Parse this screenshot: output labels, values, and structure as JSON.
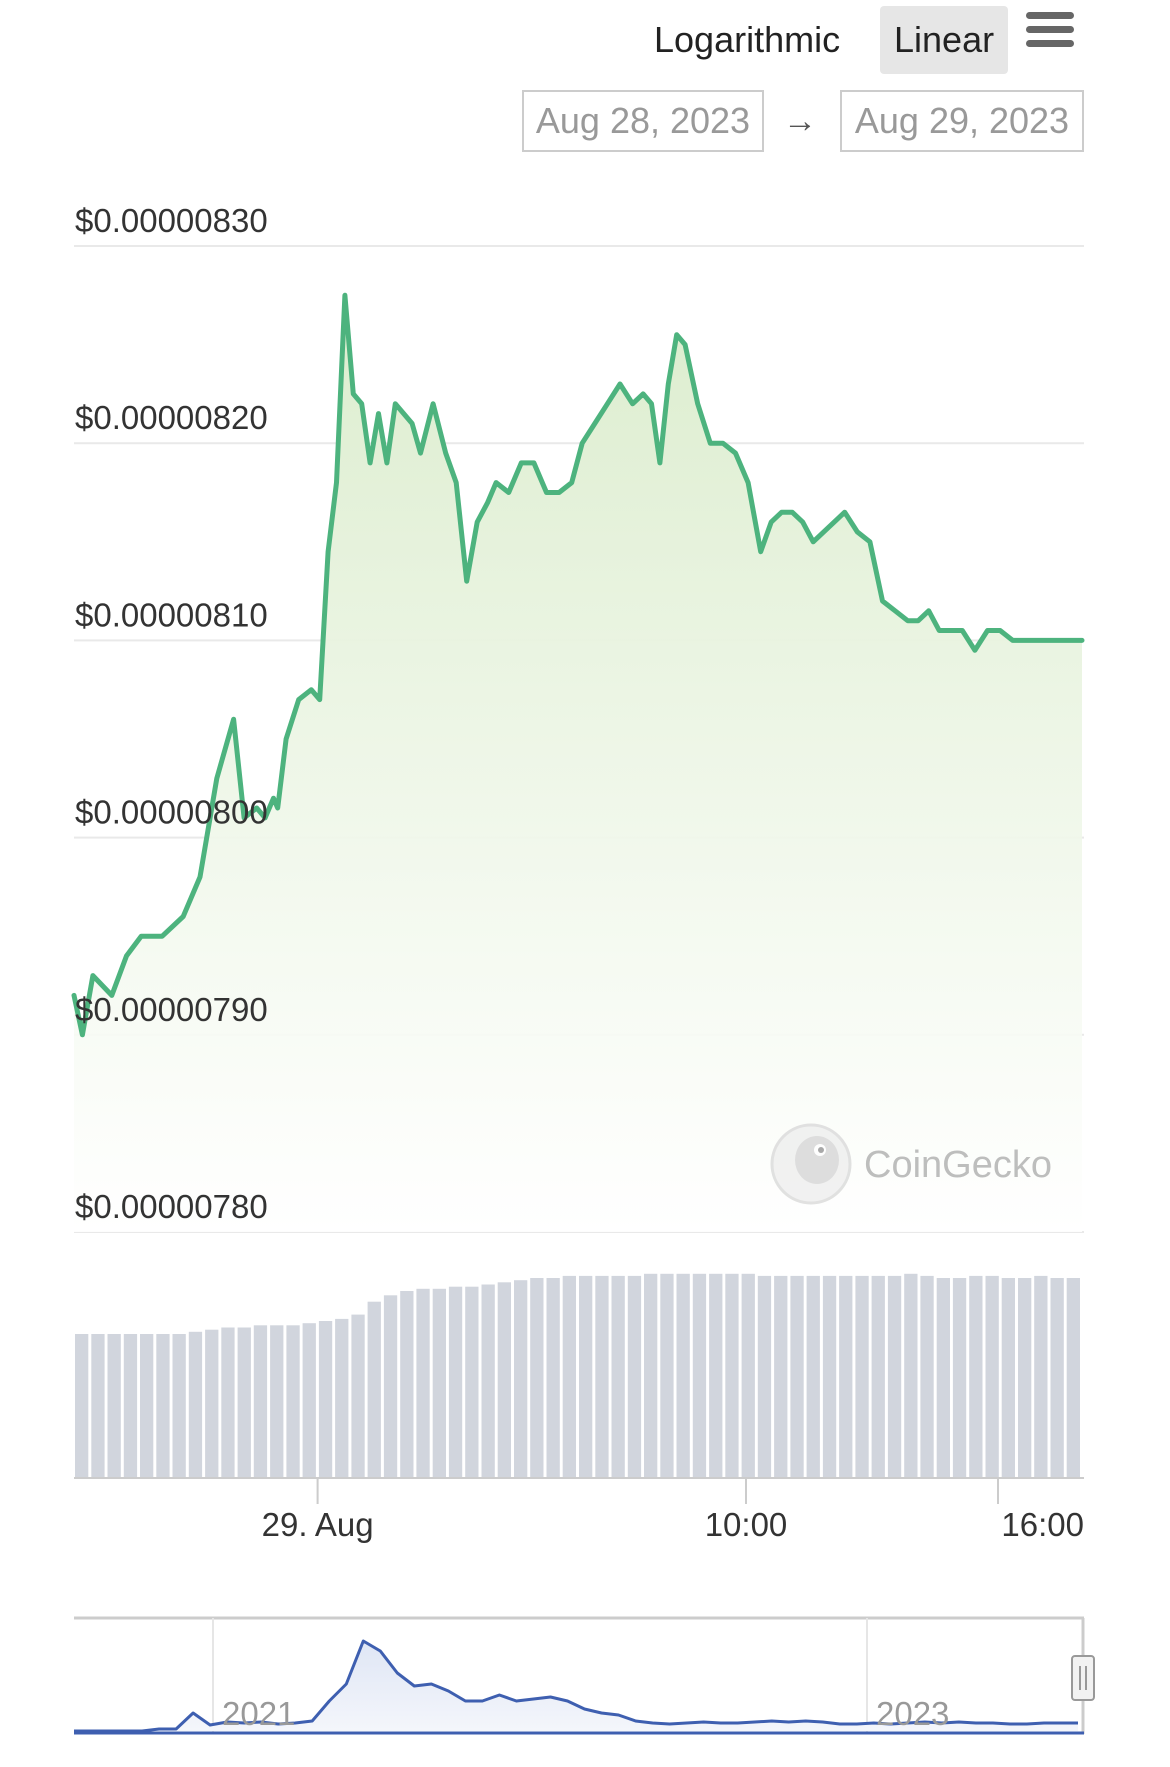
{
  "toolbar": {
    "scale_options": [
      "Logarithmic",
      "Linear"
    ],
    "selected_scale": "Linear",
    "menu_icon": "hamburger-menu-icon"
  },
  "range": {
    "from": "Aug 28, 2023",
    "to": "Aug 29, 2023",
    "arrow_icon": "arrow-right-icon"
  },
  "watermark": "CoinGecko",
  "colors": {
    "price_line": "#4db37e",
    "price_fill": "#e3f0da",
    "volume_bar": "#d1d5dd",
    "navigator_line": "#3e5fb0"
  },
  "chart_data": [
    {
      "type": "area",
      "title": "",
      "xlabel": "",
      "ylabel": "",
      "ylim": [
        7.8e-06,
        8.3e-06
      ],
      "yticks": [
        "$0.00000830",
        "$0.00000820",
        "$0.00000810",
        "$0.00000800",
        "$0.00000790",
        "$0.00000780"
      ],
      "ytick_values": [
        8.3e-06,
        8.2e-06,
        8.1e-06,
        8e-06,
        7.9e-06,
        7.8e-06
      ],
      "xticks": [
        "29. Aug",
        "10:00",
        "16:00"
      ],
      "xtick_hours": [
        5.8,
        16.0,
        22.0
      ],
      "x_unit": "hours",
      "grid": true,
      "series": [
        {
          "x": [
            0,
            0.2,
            0.45,
            0.9,
            1.25,
            1.6,
            2.1,
            2.6,
            3.0,
            3.4,
            3.8,
            4.05,
            4.35,
            4.55,
            4.75,
            4.85,
            5.05,
            5.35,
            5.65,
            5.85,
            6.05,
            6.25,
            6.45,
            6.65,
            6.85,
            7.05,
            7.25,
            7.45,
            7.65,
            7.85,
            8.05,
            8.25,
            8.55,
            8.85,
            9.1,
            9.35,
            9.6,
            9.85,
            10.05,
            10.35,
            10.65,
            10.95,
            11.25,
            11.55,
            11.85,
            12.1,
            12.4,
            12.7,
            13.0,
            13.3,
            13.55,
            13.75,
            13.95,
            14.15,
            14.35,
            14.55,
            14.85,
            15.15,
            15.45,
            15.75,
            16.05,
            16.35,
            16.6,
            16.85,
            17.1,
            17.35,
            17.6,
            17.85,
            18.1,
            18.35,
            18.65,
            18.95,
            19.25,
            19.55,
            19.85,
            20.1,
            20.35,
            20.6,
            20.85,
            21.15,
            21.45,
            21.75,
            22.05,
            22.35,
            22.65,
            22.95,
            23.25,
            23.55,
            23.85,
            24.0
          ],
          "y": [
            7.92e-06,
            7.9e-06,
            7.93e-06,
            7.92e-06,
            7.94e-06,
            7.95e-06,
            7.95e-06,
            7.96e-06,
            7.98e-06,
            8.03e-06,
            8.06e-06,
            8.01e-06,
            8.015e-06,
            8.01e-06,
            8.02e-06,
            8.015e-06,
            8.05e-06,
            8.07e-06,
            8.075e-06,
            8.07e-06,
            8.145e-06,
            8.18e-06,
            8.275e-06,
            8.225e-06,
            8.22e-06,
            8.19e-06,
            8.215e-06,
            8.19e-06,
            8.22e-06,
            8.215e-06,
            8.21e-06,
            8.195e-06,
            8.22e-06,
            8.195e-06,
            8.18e-06,
            8.13e-06,
            8.16e-06,
            8.17e-06,
            8.18e-06,
            8.175e-06,
            8.19e-06,
            8.19e-06,
            8.175e-06,
            8.175e-06,
            8.18e-06,
            8.2e-06,
            8.21e-06,
            8.22e-06,
            8.23e-06,
            8.22e-06,
            8.225e-06,
            8.22e-06,
            8.19e-06,
            8.23e-06,
            8.255e-06,
            8.25e-06,
            8.22e-06,
            8.2e-06,
            8.2e-06,
            8.195e-06,
            8.18e-06,
            8.145e-06,
            8.16e-06,
            8.165e-06,
            8.165e-06,
            8.16e-06,
            8.15e-06,
            8.155e-06,
            8.16e-06,
            8.165e-06,
            8.155e-06,
            8.15e-06,
            8.12e-06,
            8.115e-06,
            8.11e-06,
            8.11e-06,
            8.115e-06,
            8.105e-06,
            8.105e-06,
            8.105e-06,
            8.095e-06,
            8.105e-06,
            8.105e-06,
            8.1e-06,
            8.1e-06,
            8.1e-06,
            8.1e-06,
            8.1e-06,
            8.1e-06,
            8.1e-06
          ]
        }
      ]
    },
    {
      "type": "bar",
      "title": "",
      "xlabel": "",
      "ylabel": "",
      "ylim": [
        0,
        1
      ],
      "values": [
        0.67,
        0.67,
        0.67,
        0.67,
        0.67,
        0.67,
        0.67,
        0.68,
        0.69,
        0.7,
        0.7,
        0.71,
        0.71,
        0.71,
        0.72,
        0.73,
        0.74,
        0.76,
        0.82,
        0.85,
        0.87,
        0.88,
        0.88,
        0.89,
        0.89,
        0.9,
        0.91,
        0.92,
        0.93,
        0.93,
        0.94,
        0.94,
        0.94,
        0.94,
        0.94,
        0.95,
        0.95,
        0.95,
        0.95,
        0.95,
        0.95,
        0.95,
        0.94,
        0.94,
        0.94,
        0.94,
        0.94,
        0.94,
        0.94,
        0.94,
        0.94,
        0.95,
        0.94,
        0.93,
        0.93,
        0.94,
        0.94,
        0.93,
        0.93,
        0.94,
        0.93,
        0.93
      ]
    },
    {
      "type": "line",
      "title": "",
      "xlabel": "",
      "ylabel": "",
      "xticks": [
        "2021",
        "2023"
      ],
      "grid": true,
      "series": [
        {
          "values": [
            0,
            0,
            0,
            0,
            0,
            0.02,
            0.02,
            0.18,
            0.06,
            0.09,
            0.08,
            0.09,
            0.07,
            0.08,
            0.1,
            0.3,
            0.47,
            0.9,
            0.8,
            0.58,
            0.45,
            0.47,
            0.4,
            0.3,
            0.3,
            0.36,
            0.3,
            0.32,
            0.34,
            0.3,
            0.22,
            0.18,
            0.16,
            0.1,
            0.08,
            0.07,
            0.08,
            0.09,
            0.08,
            0.08,
            0.09,
            0.1,
            0.09,
            0.1,
            0.09,
            0.07,
            0.07,
            0.08,
            0.07,
            0.08,
            0.09,
            0.08,
            0.09,
            0.08,
            0.08,
            0.07,
            0.07,
            0.08,
            0.08,
            0.08
          ]
        }
      ]
    }
  ]
}
